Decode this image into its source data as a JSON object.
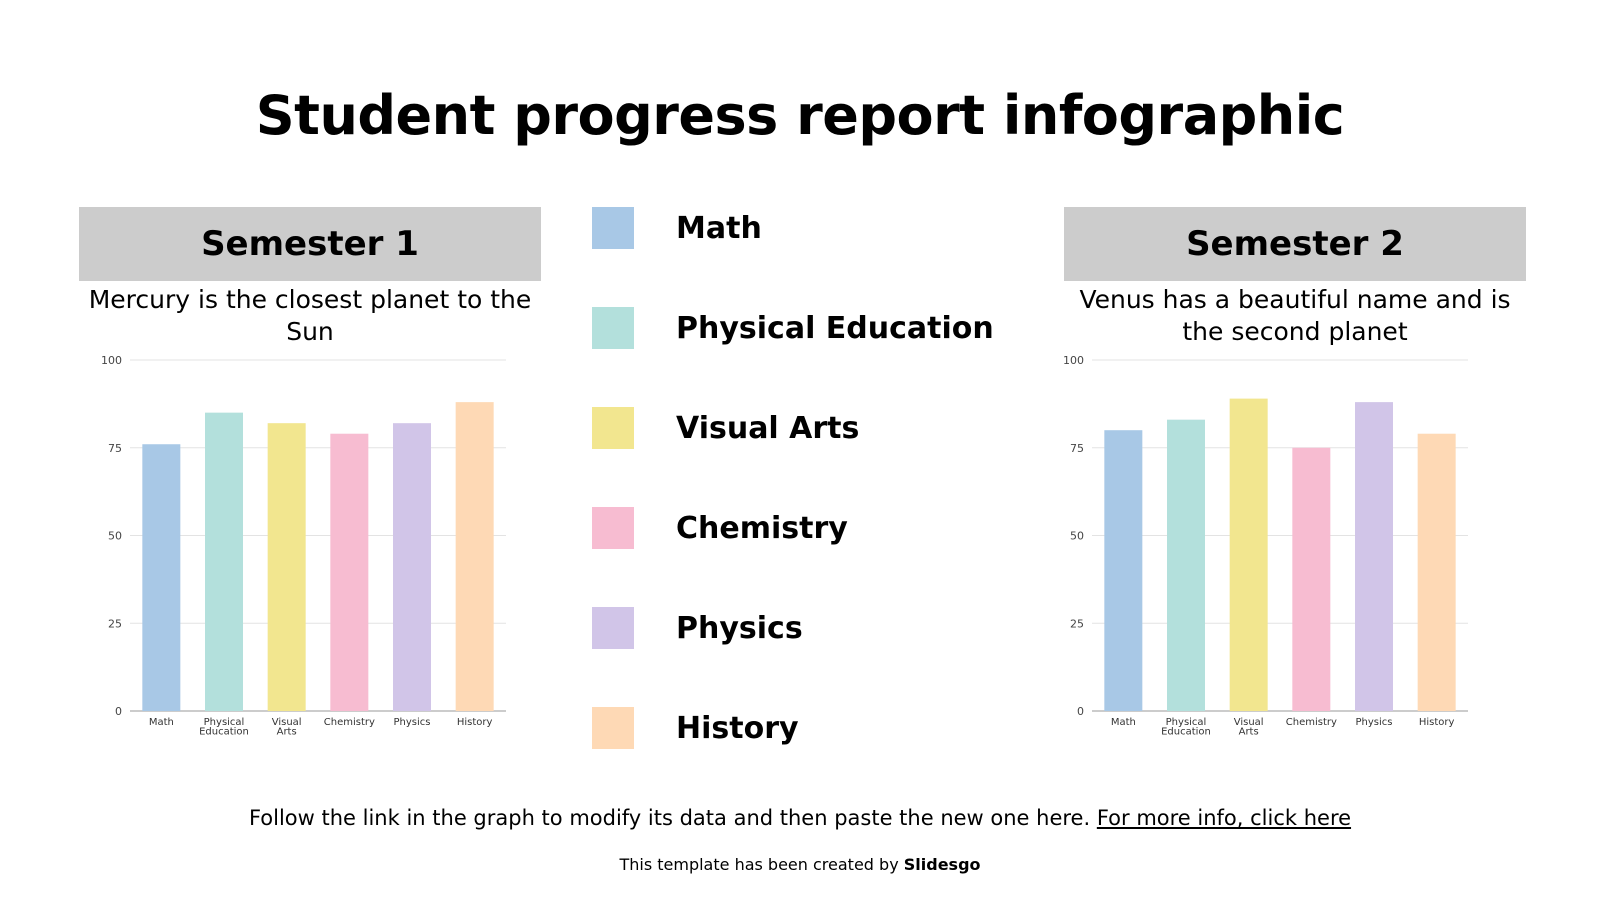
{
  "title": "Student progress report infographic",
  "legend": [
    {
      "label": "Math",
      "color": "#a8c8e6"
    },
    {
      "label": "Physical Education",
      "color": "#b3e0dc"
    },
    {
      "label": "Visual Arts",
      "color": "#f2e68f"
    },
    {
      "label": "Chemistry",
      "color": "#f7bcd1"
    },
    {
      "label": "Physics",
      "color": "#d1c5e8"
    },
    {
      "label": "History",
      "color": "#fed9b5"
    }
  ],
  "semester1": {
    "title": "Semester 1",
    "description": "Mercury is the closest planet to the Sun"
  },
  "semester2": {
    "title": "Semester 2",
    "description": "Venus has a beautiful name and is the second planet"
  },
  "footer": {
    "text": "Follow the link in the graph to modify its data and then paste the new one here. ",
    "link": "For more info, click here"
  },
  "credit": {
    "text": "This template has been created by ",
    "brand": "Slidesgo"
  },
  "chart_data": [
    {
      "type": "bar",
      "categories": [
        [
          "Math"
        ],
        [
          "Physical",
          "Education"
        ],
        [
          "Visual",
          "Arts"
        ],
        [
          "Chemistry"
        ],
        [
          "Physics"
        ],
        [
          "History"
        ]
      ],
      "values": [
        76,
        85,
        82,
        79,
        82,
        88
      ],
      "ylim": [
        0,
        100
      ],
      "yticks": [
        0,
        25,
        50,
        75,
        100
      ],
      "grid": true,
      "colors": [
        "#a8c8e6",
        "#b3e0dc",
        "#f2e68f",
        "#f7bcd1",
        "#d1c5e8",
        "#fed9b5"
      ]
    },
    {
      "type": "bar",
      "categories": [
        [
          "Math"
        ],
        [
          "Physical",
          "Education"
        ],
        [
          "Visual",
          "Arts"
        ],
        [
          "Chemistry"
        ],
        [
          "Physics"
        ],
        [
          "History"
        ]
      ],
      "values": [
        80,
        83,
        89,
        75,
        88,
        79
      ],
      "ylim": [
        0,
        100
      ],
      "yticks": [
        0,
        25,
        50,
        75,
        100
      ],
      "grid": true,
      "colors": [
        "#a8c8e6",
        "#b3e0dc",
        "#f2e68f",
        "#f7bcd1",
        "#d1c5e8",
        "#fed9b5"
      ]
    }
  ]
}
